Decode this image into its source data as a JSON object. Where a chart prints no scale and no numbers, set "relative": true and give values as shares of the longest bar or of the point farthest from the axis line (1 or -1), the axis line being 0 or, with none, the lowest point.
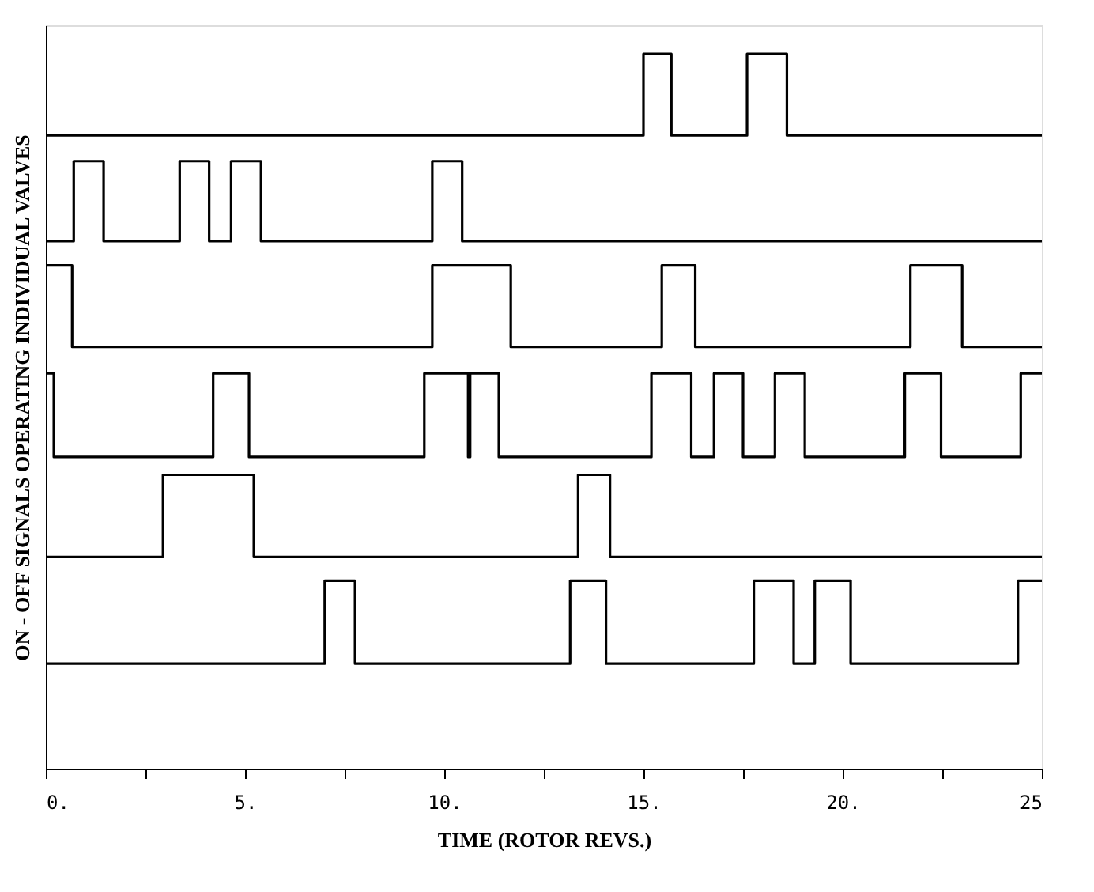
{
  "chart_data": {
    "type": "step",
    "relative": true,
    "xlabel": "TIME (ROTOR REVS.)",
    "ylabel": "ON - OFF SIGNALS OPERATING INDIVIDUAL VALVES",
    "xlim": [
      0,
      25
    ],
    "xticks": [
      {
        "value": 0,
        "label": "0."
      },
      {
        "value": 2.5,
        "label": null
      },
      {
        "value": 5,
        "label": "5."
      },
      {
        "value": 7.5,
        "label": null
      },
      {
        "value": 10,
        "label": "10."
      },
      {
        "value": 12.5,
        "label": null
      },
      {
        "value": 15,
        "label": "15."
      },
      {
        "value": 17.5,
        "label": null
      },
      {
        "value": 20,
        "label": "20."
      },
      {
        "value": 22.5,
        "label": null
      },
      {
        "value": 25,
        "label": "25"
      }
    ],
    "grid": false,
    "marker": "none",
    "line_style": "solid",
    "series": [
      {
        "color": "#000000",
        "x": [
          0,
          15.0,
          15.7,
          17.6,
          18.6,
          25
        ],
        "values": [
          0.886,
          1.0,
          0.886,
          1.0,
          0.886,
          0.886
        ]
      },
      {
        "color": "#000000",
        "x": [
          0,
          0.7,
          1.45,
          3.36,
          4.1,
          4.65,
          5.4,
          9.7,
          10.45,
          25
        ],
        "values": [
          0.738,
          0.85,
          0.738,
          0.85,
          0.738,
          0.85,
          0.738,
          0.85,
          0.738,
          0.738
        ]
      },
      {
        "color": "#000000",
        "x": [
          0,
          0.66,
          9.7,
          11.67,
          15.46,
          16.3,
          21.7,
          23.0,
          25
        ],
        "values": [
          0.704,
          0.59,
          0.704,
          0.59,
          0.704,
          0.59,
          0.704,
          0.59,
          0.59
        ]
      },
      {
        "color": "#000000",
        "x": [
          0,
          0.2,
          4.2,
          5.1,
          9.5,
          10.6,
          10.65,
          11.37,
          15.2,
          16.2,
          16.77,
          17.5,
          18.3,
          19.05,
          21.56,
          22.47,
          24.47,
          25
        ],
        "values": [
          0.553,
          0.436,
          0.553,
          0.436,
          0.553,
          0.436,
          0.553,
          0.436,
          0.553,
          0.436,
          0.553,
          0.436,
          0.553,
          0.436,
          0.553,
          0.436,
          0.553,
          0.553
        ]
      },
      {
        "color": "#000000",
        "x": [
          0,
          2.94,
          5.22,
          13.36,
          14.16,
          25
        ],
        "values": [
          0.296,
          0.411,
          0.296,
          0.411,
          0.296,
          0.296
        ]
      },
      {
        "color": "#000000",
        "x": [
          0,
          7.0,
          7.76,
          13.16,
          14.06,
          17.77,
          18.77,
          19.3,
          20.2,
          24.4,
          25
        ],
        "values": [
          0.147,
          0.263,
          0.147,
          0.263,
          0.147,
          0.263,
          0.147,
          0.263,
          0.147,
          0.263,
          0.263
        ]
      }
    ]
  }
}
